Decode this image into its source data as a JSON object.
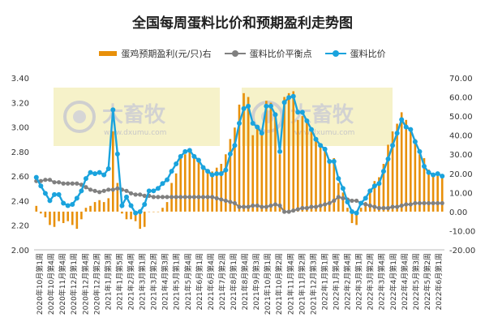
{
  "chart_data": {
    "type": "bar+line",
    "title": "全国每周蛋料比价和预期盈利走势图",
    "legend": [
      "蛋鸡预期盈利(元/只)右",
      "蛋料比价平衡点",
      "蛋料比价"
    ],
    "colors": {
      "profit": "#E8900A",
      "breakeven": "#808080",
      "ratio": "#1AA3DD",
      "watermark_bg": "#F3EDB7"
    },
    "watermark": {
      "brand": "大畜牧",
      "url": "www.dxumu.com"
    },
    "left_axis": {
      "ticks": [
        "2.00",
        "2.20",
        "2.40",
        "2.60",
        "2.80",
        "3.00",
        "3.20",
        "3.40"
      ],
      "ylim": [
        2.0,
        3.4
      ]
    },
    "right_axis": {
      "ticks": [
        "-20.00",
        "-10.00",
        "0.00",
        "10.00",
        "20.00",
        "30.00",
        "40.00",
        "50.00",
        "60.00",
        "70.00"
      ],
      "ylim": [
        -20,
        70
      ]
    },
    "x_labels": [
      "2020年10月第1周",
      "2020年10月第4周",
      "2020年11月第4周",
      "2020年12月第1周",
      "2020年12月第4周",
      "2020年12月第2周",
      "2021年1月第3周",
      "2021年1月第5周",
      "2021年2月第4周",
      "2021年3月第1周",
      "2021年3月第2周",
      "2021年4月第3周",
      "2021年5月第1周",
      "2021年5月第4周",
      "2021年6月第1周",
      "2021年6月第4周",
      "2021年7月第2周",
      "2021年8月第1周",
      "2021年8月第4周",
      "2021年9月第3周",
      "2021年10月第1周",
      "2021年10月第2周",
      "2021年11月第4周",
      "2021年11月第2周",
      "2021年12月第3周",
      "2022年1月第1周",
      "2022年1月第4周",
      "2022年2月第4周",
      "2022年3月第1周",
      "2022年3月第2周",
      "2022年3月第4周",
      "2022年4月第1周",
      "2022年4月第4周",
      "2022年5月第3周",
      "2022年5月第2周",
      "2022年6月第1周"
    ],
    "ratio": [
      2.59,
      2.52,
      2.46,
      2.4,
      2.45,
      2.45,
      2.38,
      2.36,
      2.37,
      2.42,
      2.48,
      2.58,
      2.63,
      2.62,
      2.63,
      2.61,
      2.66,
      3.14,
      2.78,
      2.36,
      2.43,
      2.36,
      2.3,
      2.31,
      2.37,
      2.48,
      2.48,
      2.5,
      2.54,
      2.57,
      2.64,
      2.7,
      2.76,
      2.8,
      2.81,
      2.76,
      2.73,
      2.67,
      2.64,
      2.61,
      2.62,
      2.62,
      2.65,
      2.78,
      2.85,
      3.03,
      3.15,
      3.17,
      3.03,
      3.0,
      2.95,
      3.17,
      3.17,
      3.1,
      2.8,
      3.2,
      3.24,
      3.25,
      3.12,
      3.12,
      3.05,
      2.98,
      2.9,
      2.85,
      2.82,
      2.72,
      2.72,
      2.58,
      2.5,
      2.39,
      2.31,
      2.3,
      2.38,
      2.42,
      2.48,
      2.52,
      2.54,
      2.64,
      2.74,
      2.85,
      2.95,
      3.06,
      3.0,
      2.98,
      2.88,
      2.8,
      2.68,
      2.63,
      2.61,
      2.62,
      2.6
    ],
    "breakeven": [
      2.56,
      2.56,
      2.57,
      2.57,
      2.55,
      2.55,
      2.54,
      2.54,
      2.54,
      2.54,
      2.53,
      2.51,
      2.49,
      2.48,
      2.47,
      2.48,
      2.49,
      2.49,
      2.5,
      2.49,
      2.48,
      2.46,
      2.45,
      2.45,
      2.44,
      2.44,
      2.43,
      2.43,
      2.43,
      2.43,
      2.43,
      2.43,
      2.43,
      2.43,
      2.43,
      2.43,
      2.43,
      2.43,
      2.43,
      2.43,
      2.42,
      2.41,
      2.4,
      2.39,
      2.38,
      2.35,
      2.35,
      2.35,
      2.36,
      2.36,
      2.35,
      2.35,
      2.36,
      2.37,
      2.36,
      2.31,
      2.31,
      2.32,
      2.33,
      2.34,
      2.34,
      2.35,
      2.35,
      2.36,
      2.37,
      2.38,
      2.4,
      2.43,
      2.42,
      2.41,
      2.4,
      2.4,
      2.38,
      2.37,
      2.36,
      2.35,
      2.34,
      2.34,
      2.34,
      2.35,
      2.35,
      2.36,
      2.37,
      2.37,
      2.38,
      2.38,
      2.38,
      2.38,
      2.38,
      2.38,
      2.38
    ],
    "profit": [
      3,
      -1,
      -3,
      -7,
      -8,
      -5,
      -6,
      -5,
      -7,
      -9,
      -4,
      2,
      3,
      5,
      6,
      5,
      7,
      42,
      15,
      -1,
      -4,
      -4,
      -5,
      -9,
      -8,
      0,
      0,
      0,
      2,
      5,
      15,
      20,
      28,
      30,
      31,
      28,
      26,
      24,
      22,
      21,
      23,
      25,
      30,
      38,
      44,
      56,
      62,
      60,
      40,
      45,
      40,
      58,
      57,
      52,
      30,
      60,
      62,
      63,
      48,
      50,
      47,
      42,
      38,
      35,
      32,
      27,
      28,
      15,
      10,
      2,
      -6,
      -7,
      2,
      5,
      12,
      16,
      18,
      25,
      35,
      42,
      46,
      52,
      48,
      43,
      38,
      30,
      28,
      22,
      19,
      20,
      19
    ]
  }
}
